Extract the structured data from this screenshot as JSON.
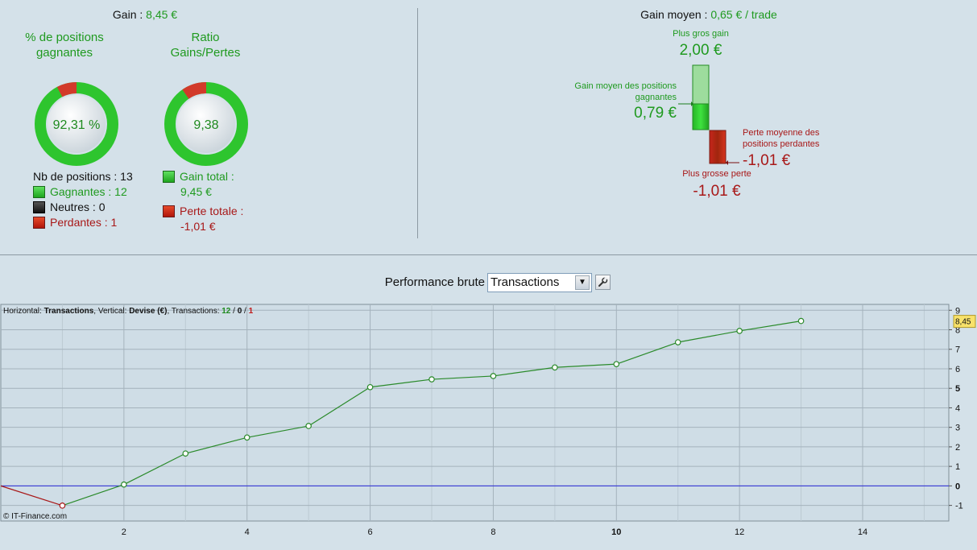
{
  "summary": {
    "gain_label": "Gain : ",
    "gain_value": "8,45 €",
    "win_pct_title": "% de positions gagnantes",
    "win_pct_value": "92,31 %",
    "win_pct_fraction": 0.9231,
    "ratio_title": "Ratio Gains/Pertes",
    "ratio_value": "9,38",
    "ratio_fraction": 0.9036,
    "nb_positions": "Nb de positions : 13",
    "gagnantes": "Gagnantes : 12",
    "neutres": "Neutres : 0",
    "perdantes": "Perdantes : 1",
    "gain_total_label": "Gain total :",
    "gain_total_value": "9,45 €",
    "perte_totale_label": "Perte totale :",
    "perte_totale_value": "-1,01 €"
  },
  "average": {
    "title_label": "Gain moyen : ",
    "title_value": "0,65 € / trade",
    "plus_gros_gain_label": "Plus gros gain",
    "plus_gros_gain_value": "2,00 €",
    "gain_moyen_label": "Gain moyen des positions gagnantes",
    "gain_moyen_value": "0,79 €",
    "perte_moyenne_label": "Perte moyenne des positions perdantes",
    "perte_moyenne_value": "-1,01 €",
    "plus_grosse_perte_label": "Plus grosse perte",
    "plus_grosse_perte_value": "-1,01 €"
  },
  "toolbar": {
    "performance_label": "Performance brute",
    "select_value": "Transactions"
  },
  "chart_info": {
    "prefix_h": "Horizontal: ",
    "h_value": "Transactions",
    "prefix_v": ", Vertical: ",
    "v_value": "Devise (€)",
    "prefix_t": ", Transactions: ",
    "t_win": "12",
    "sep1": " / ",
    "t_neutral": "0",
    "sep2": " / ",
    "t_loss": "1",
    "copyright": "© IT-Finance.com",
    "last_value_badge": "8,45"
  },
  "colors": {
    "green": "#1f9a1f",
    "red": "#a81818",
    "line_green": "#2a8a2a",
    "zero_line": "#2a2ad8"
  },
  "chart_data": {
    "type": "line",
    "x": [
      0,
      1,
      2,
      3,
      4,
      5,
      6,
      7,
      8,
      9,
      10,
      11,
      12,
      13
    ],
    "y": [
      0,
      -1.01,
      0.07,
      1.66,
      2.48,
      3.07,
      5.06,
      5.46,
      5.63,
      6.07,
      6.24,
      7.36,
      7.94,
      8.45
    ],
    "xlim": [
      0,
      15.4
    ],
    "ylim": [
      -1.8,
      9.3
    ],
    "x_ticks": [
      "2",
      "4",
      "6",
      "8",
      "10",
      "12",
      "14"
    ],
    "y_ticks": [
      "-1",
      "0",
      "1",
      "2",
      "3",
      "4",
      "5",
      "6",
      "7",
      "8",
      "9"
    ],
    "grid": true
  }
}
